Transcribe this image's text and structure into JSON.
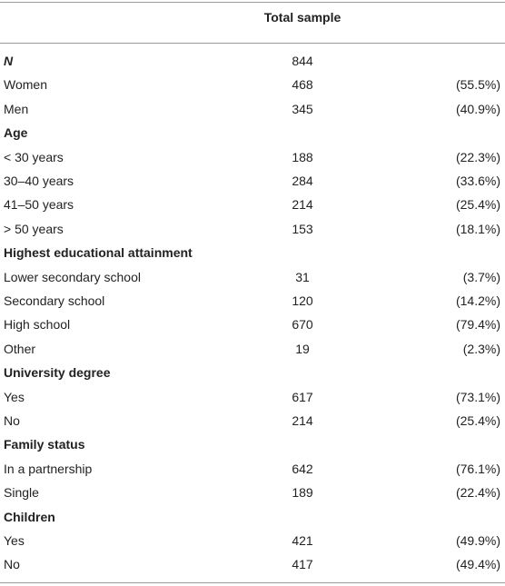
{
  "table": {
    "header": "Total sample",
    "rows": [
      {
        "label": "N",
        "n": 844
      },
      {
        "label": "Women",
        "n": 468,
        "pct": "(55.5%)"
      },
      {
        "label": "Men",
        "n": 345,
        "pct": "(40.9%)"
      },
      {
        "label": "Age"
      },
      {
        "label": "< 30 years",
        "n": 188,
        "pct": "(22.3%)"
      },
      {
        "label": "30–40 years",
        "n": 284,
        "pct": "(33.6%)"
      },
      {
        "label": "41–50 years",
        "n": 214,
        "pct": "(25.4%)"
      },
      {
        "label": "> 50 years",
        "n": 153,
        "pct": "(18.1%)"
      },
      {
        "label": "Highest educational attainment"
      },
      {
        "label": "Lower secondary school",
        "n": 31,
        "pct": "(3.7%)"
      },
      {
        "label": "Secondary school",
        "n": 120,
        "pct": "(14.2%)"
      },
      {
        "label": "High school",
        "n": 670,
        "pct": "(79.4%)"
      },
      {
        "label": "Other",
        "n": 19,
        "pct": "(2.3%)"
      },
      {
        "label": "University degree"
      },
      {
        "label": "Yes",
        "n": 617,
        "pct": "(73.1%)"
      },
      {
        "label": "No",
        "n": 214,
        "pct": "(25.4%)"
      },
      {
        "label": "Family status"
      },
      {
        "label": "In a partnership",
        "n": 642,
        "pct": "(76.1%)"
      },
      {
        "label": "Single",
        "n": 189,
        "pct": "(22.4%)"
      },
      {
        "label": "Children"
      },
      {
        "label": "Yes",
        "n": 421,
        "pct": "(49.9%)"
      },
      {
        "label": "No",
        "n": 417,
        "pct": "(49.4%)"
      }
    ]
  }
}
